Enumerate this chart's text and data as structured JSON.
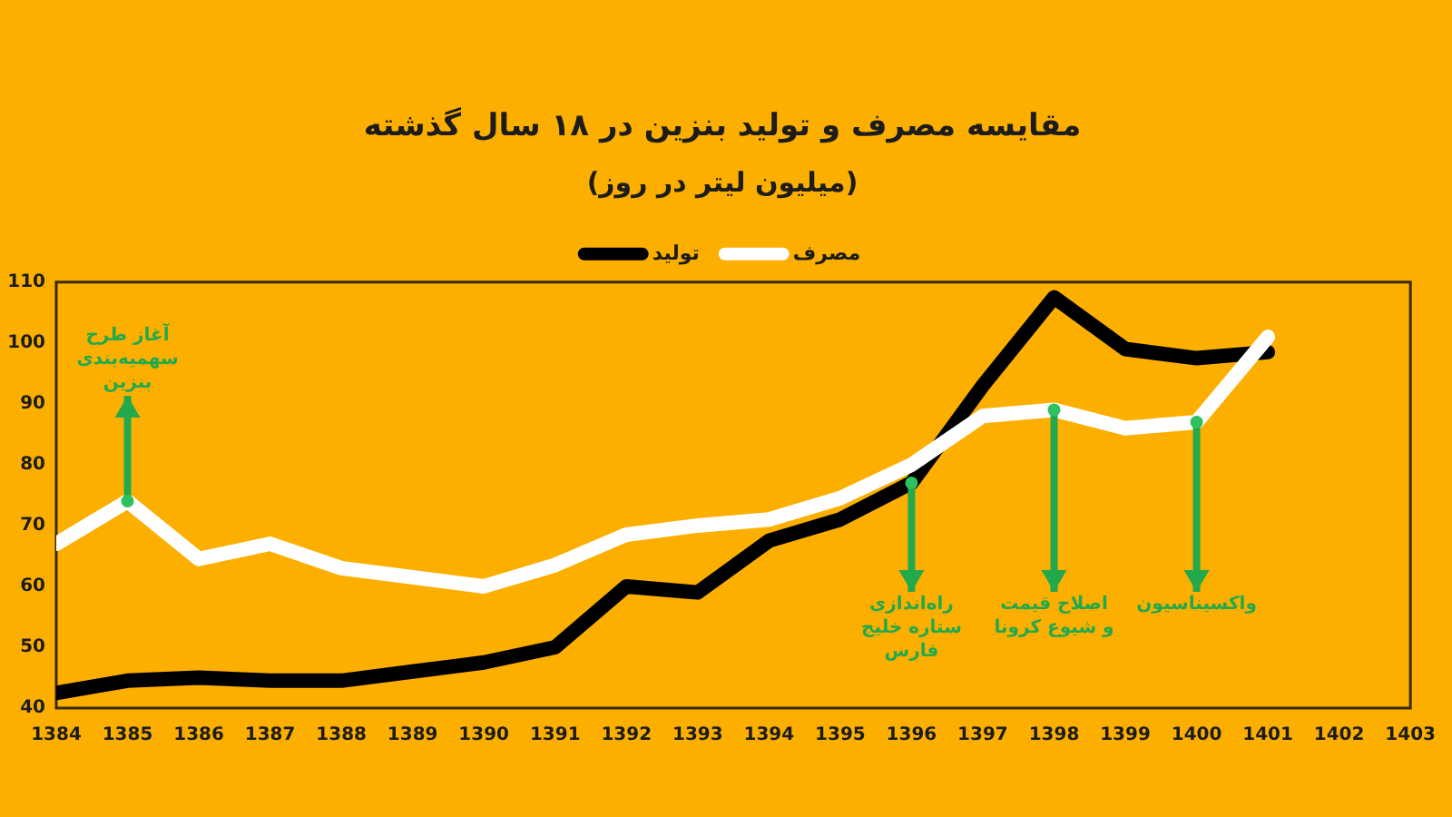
{
  "chart_data": {
    "type": "line",
    "title": "مقایسه مصرف و تولید بنزین در ۱۸ سال گذشته",
    "subtitle": "(میلیون لیتر در روز)",
    "x": [
      1384,
      1385,
      1386,
      1387,
      1388,
      1389,
      1390,
      1391,
      1392,
      1393,
      1394,
      1395,
      1396,
      1397,
      1398,
      1399,
      1400,
      1401
    ],
    "series": [
      {
        "name": "تولید",
        "color": "#000000",
        "values": [
          42.5,
          44.5,
          45,
          44.5,
          44.5,
          46,
          47.5,
          50,
          60,
          59,
          67.5,
          71,
          77,
          93,
          107.5,
          99,
          97.5,
          98.5
        ]
      },
      {
        "name": "مصرف",
        "color": "#ffffff",
        "values": [
          67,
          74,
          64.5,
          67,
          63,
          61.5,
          60,
          63.5,
          68.5,
          70,
          71,
          74.5,
          80,
          88,
          89,
          86,
          87,
          101
        ]
      }
    ],
    "xlim": [
      1384,
      1403
    ],
    "xticks": [
      1384,
      1385,
      1386,
      1387,
      1388,
      1389,
      1390,
      1391,
      1392,
      1393,
      1394,
      1395,
      1396,
      1397,
      1398,
      1399,
      1400,
      1401,
      1402,
      1403
    ],
    "ylim": [
      40,
      110
    ],
    "yticks": [
      40,
      50,
      60,
      70,
      80,
      90,
      100,
      110
    ],
    "legend": "top",
    "marker": "none",
    "annotations": [
      {
        "text": "آغاز طرح\nسهمیه‌بندی\nبنزین",
        "x": 1385,
        "y": 74
      },
      {
        "text": "راه‌اندازی\nستاره خلیج\nفارس",
        "x": 1396,
        "y": 77
      },
      {
        "text": "اصلاح قیمت\nو شیوع کرونا",
        "x": 1398,
        "y": 89
      },
      {
        "text": "واکسیناسیون",
        "x": 1400,
        "y": 87
      }
    ]
  }
}
